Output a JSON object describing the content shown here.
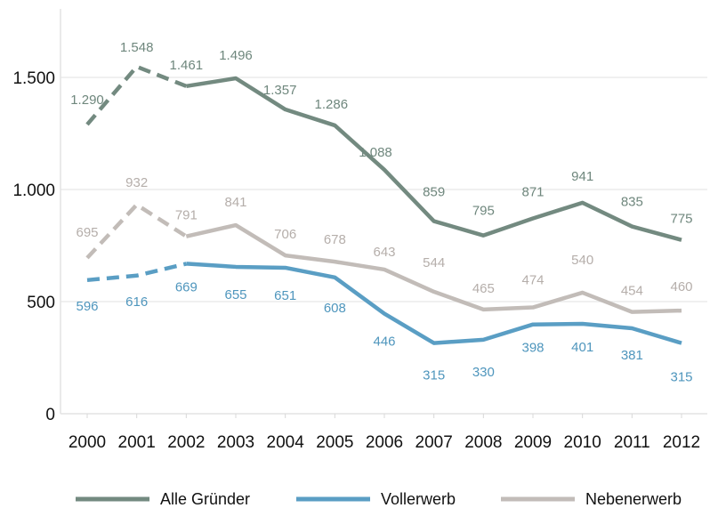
{
  "chart_data": {
    "type": "line",
    "title": "",
    "xlabel": "",
    "ylabel": "",
    "x": [
      "2000",
      "2001",
      "2002",
      "2003",
      "2004",
      "2005",
      "2006",
      "2007",
      "2008",
      "2009",
      "2010",
      "2011",
      "2012"
    ],
    "ylim": [
      0,
      1750
    ],
    "yticks": [
      0,
      500,
      1000,
      1500
    ],
    "ytick_labels": [
      "0",
      "500",
      "1.000",
      "1.500"
    ],
    "grid": "horizontal",
    "legend_position": "bottom",
    "dashed_segment": [
      "2000",
      "2002"
    ],
    "series": [
      {
        "name": "Alle Gründer",
        "color": "#738a80",
        "values": [
          1290,
          1548,
          1461,
          1496,
          1357,
          1286,
          1088,
          859,
          795,
          871,
          941,
          835,
          775
        ],
        "labels": [
          "1.290",
          "1.548",
          "1.461",
          "1.496",
          "1.357",
          "1.286",
          "1.088",
          "859",
          "795",
          "871",
          "941",
          "835",
          "775"
        ]
      },
      {
        "name": "Vollerwerb",
        "color": "#5a9ec4",
        "values": [
          596,
          616,
          669,
          655,
          651,
          608,
          446,
          315,
          330,
          398,
          401,
          381,
          315
        ],
        "labels": [
          "596",
          "616",
          "669",
          "655",
          "651",
          "608",
          "446",
          "315",
          "330",
          "398",
          "401",
          "381",
          "315"
        ]
      },
      {
        "name": "Nebenerwerb",
        "color": "#c2bcb8",
        "values": [
          695,
          932,
          791,
          841,
          706,
          678,
          643,
          544,
          465,
          474,
          540,
          454,
          460
        ],
        "labels": [
          "695",
          "932",
          "791",
          "841",
          "706",
          "678",
          "643",
          "544",
          "465",
          "474",
          "540",
          "454",
          "460"
        ]
      }
    ]
  }
}
